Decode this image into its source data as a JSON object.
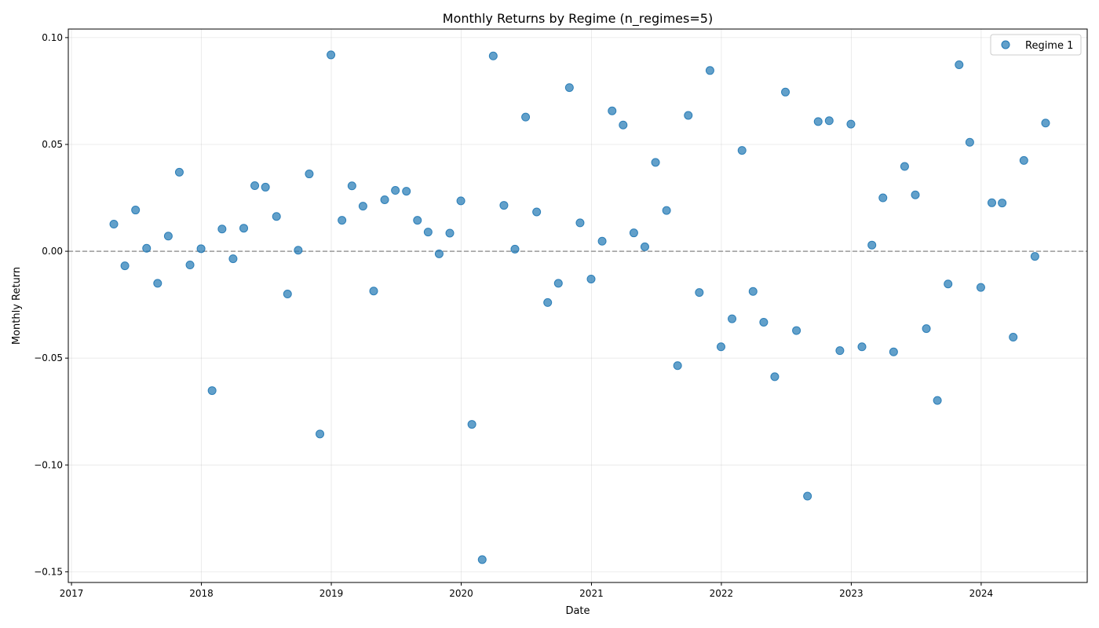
{
  "chart_data": {
    "type": "scatter",
    "title": "Monthly Returns by Regime (n_regimes=5)",
    "xlabel": "Date",
    "ylabel": "Monthly Return",
    "xlim": [
      "2016-12-23",
      "2024-10-25"
    ],
    "ylim": [
      -0.155,
      0.104
    ],
    "x_ticks": [
      "2017",
      "2018",
      "2019",
      "2020",
      "2021",
      "2022",
      "2023",
      "2024"
    ],
    "y_ticks": [
      0.1,
      0.05,
      0.0,
      -0.05,
      -0.1,
      -0.15
    ],
    "y_tick_labels": [
      "0.10",
      "0.05",
      "0.00",
      "−0.05",
      "−0.10",
      "−0.15"
    ],
    "grid": true,
    "reference_line": {
      "y": 0,
      "style": "dashed",
      "color": "#999999"
    },
    "legend": {
      "position": "top-right"
    },
    "series": [
      {
        "name": "Regime 1",
        "color": "#1f77b4",
        "points": [
          [
            "2017-04-30",
            0.0127
          ],
          [
            "2017-05-31",
            -0.0068
          ],
          [
            "2017-06-30",
            0.0193
          ],
          [
            "2017-07-31",
            0.0014
          ],
          [
            "2017-08-31",
            -0.015
          ],
          [
            "2017-09-30",
            0.0071
          ],
          [
            "2017-10-31",
            0.037
          ],
          [
            "2017-11-30",
            -0.0064
          ],
          [
            "2017-12-31",
            0.0012
          ],
          [
            "2018-01-31",
            -0.0652
          ],
          [
            "2018-02-28",
            0.0104
          ],
          [
            "2018-03-31",
            -0.0035
          ],
          [
            "2018-04-30",
            0.0108
          ],
          [
            "2018-05-31",
            0.0307
          ],
          [
            "2018-06-30",
            0.03
          ],
          [
            "2018-07-31",
            0.0163
          ],
          [
            "2018-08-31",
            -0.02
          ],
          [
            "2018-09-30",
            0.0005
          ],
          [
            "2018-10-31",
            0.0362
          ],
          [
            "2018-11-30",
            -0.0855
          ],
          [
            "2018-12-31",
            0.0919
          ],
          [
            "2019-01-31",
            0.0145
          ],
          [
            "2019-02-28",
            0.0306
          ],
          [
            "2019-03-31",
            0.0211
          ],
          [
            "2019-04-30",
            -0.0186
          ],
          [
            "2019-05-31",
            0.0241
          ],
          [
            "2019-06-30",
            0.0285
          ],
          [
            "2019-07-31",
            0.0281
          ],
          [
            "2019-08-31",
            0.0145
          ],
          [
            "2019-09-30",
            0.009
          ],
          [
            "2019-10-31",
            -0.0012
          ],
          [
            "2019-11-30",
            0.0085
          ],
          [
            "2019-12-31",
            0.0236
          ],
          [
            "2020-01-31",
            -0.081
          ],
          [
            "2020-02-29",
            -0.1443
          ],
          [
            "2020-03-31",
            0.0914
          ],
          [
            "2020-04-30",
            0.0215
          ],
          [
            "2020-05-31",
            0.001
          ],
          [
            "2020-06-30",
            0.0628
          ],
          [
            "2020-07-31",
            0.0184
          ],
          [
            "2020-08-31",
            -0.024
          ],
          [
            "2020-09-30",
            -0.015
          ],
          [
            "2020-10-31",
            0.0766
          ],
          [
            "2020-11-30",
            0.0133
          ],
          [
            "2020-12-31",
            -0.013
          ],
          [
            "2021-01-31",
            0.0047
          ],
          [
            "2021-02-28",
            0.0657
          ],
          [
            "2021-03-31",
            0.0591
          ],
          [
            "2021-04-30",
            0.0086
          ],
          [
            "2021-05-31",
            0.0021
          ],
          [
            "2021-06-30",
            0.0416
          ],
          [
            "2021-07-31",
            0.0191
          ],
          [
            "2021-08-31",
            -0.0535
          ],
          [
            "2021-09-30",
            0.0636
          ],
          [
            "2021-10-31",
            -0.0193
          ],
          [
            "2021-11-30",
            0.0846
          ],
          [
            "2021-12-31",
            -0.0447
          ],
          [
            "2022-01-31",
            -0.0316
          ],
          [
            "2022-02-28",
            0.0472
          ],
          [
            "2022-03-31",
            -0.0188
          ],
          [
            "2022-04-30",
            -0.0332
          ],
          [
            "2022-05-31",
            -0.0587
          ],
          [
            "2022-06-30",
            0.0745
          ],
          [
            "2022-07-31",
            -0.0371
          ],
          [
            "2022-08-31",
            -0.1146
          ],
          [
            "2022-09-30",
            0.0607
          ],
          [
            "2022-10-31",
            0.0611
          ],
          [
            "2022-11-30",
            -0.0465
          ],
          [
            "2022-12-31",
            0.0595
          ],
          [
            "2023-01-31",
            -0.0447
          ],
          [
            "2023-02-28",
            0.0029
          ],
          [
            "2023-03-31",
            0.025
          ],
          [
            "2023-04-30",
            -0.0471
          ],
          [
            "2023-05-31",
            0.0397
          ],
          [
            "2023-06-30",
            0.0264
          ],
          [
            "2023-07-31",
            -0.0362
          ],
          [
            "2023-08-31",
            -0.0698
          ],
          [
            "2023-09-30",
            -0.0153
          ],
          [
            "2023-10-31",
            0.0873
          ],
          [
            "2023-11-30",
            0.051
          ],
          [
            "2023-12-31",
            -0.0169
          ],
          [
            "2024-01-31",
            0.0227
          ],
          [
            "2024-02-29",
            0.0226
          ],
          [
            "2024-03-31",
            -0.0402
          ],
          [
            "2024-04-30",
            0.0425
          ],
          [
            "2024-05-31",
            -0.0024
          ],
          [
            "2024-06-30",
            0.06
          ]
        ]
      }
    ]
  }
}
